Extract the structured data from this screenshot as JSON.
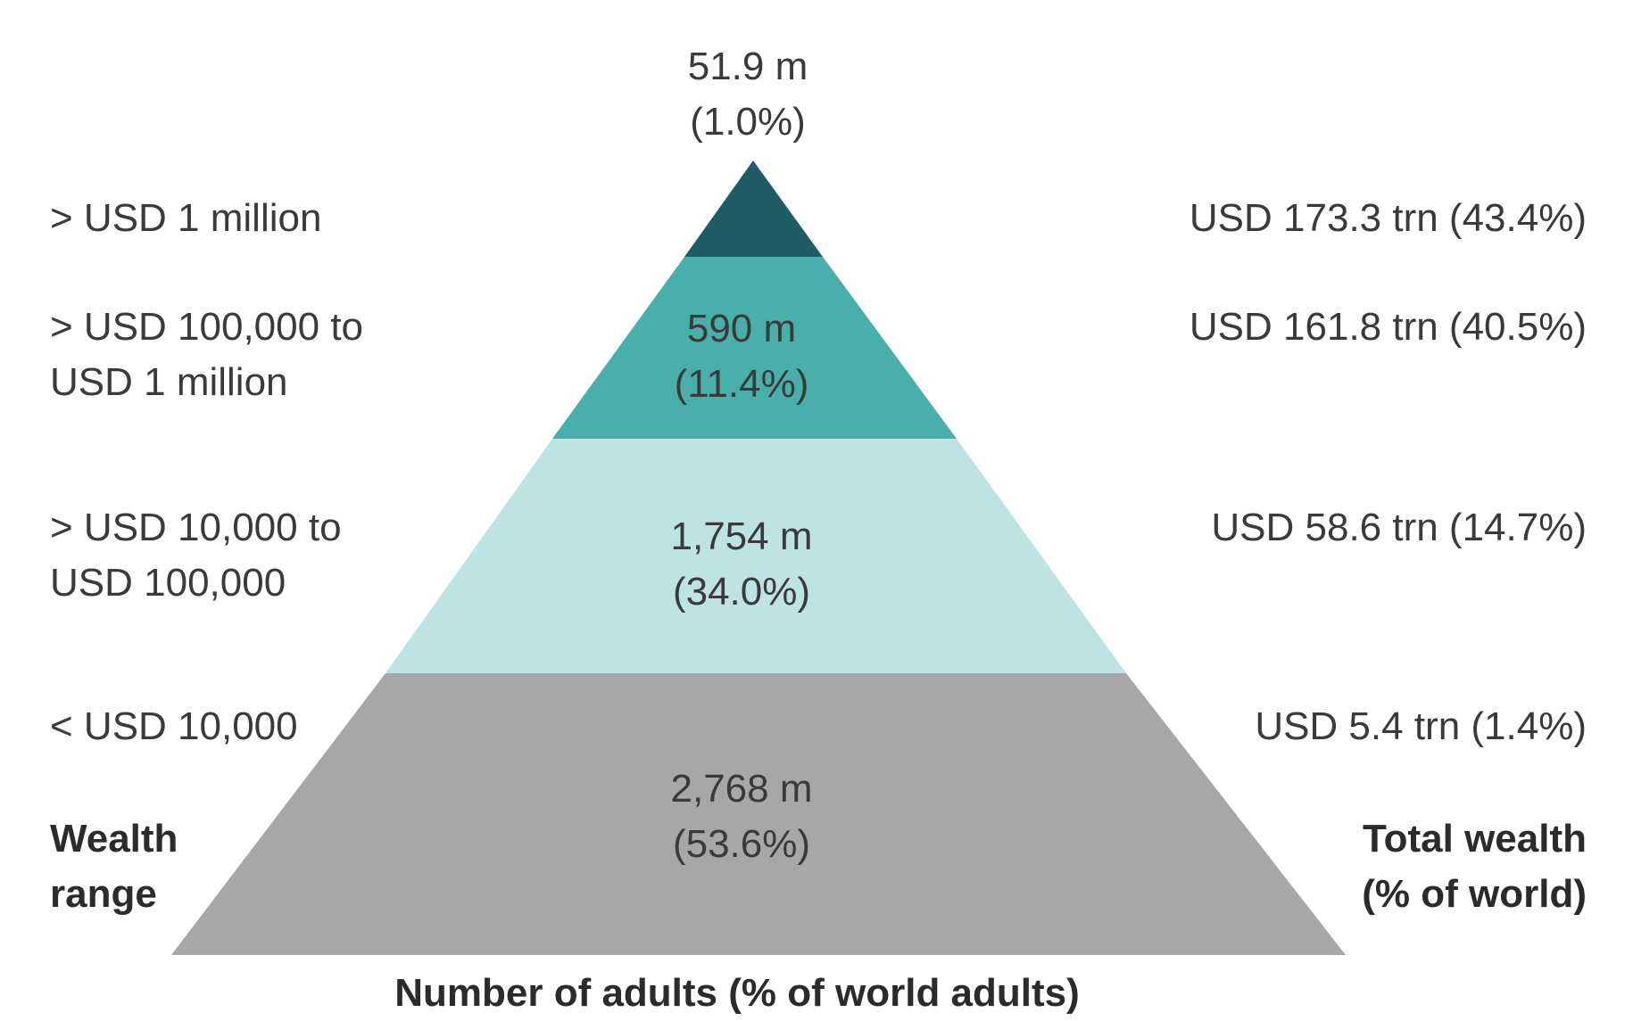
{
  "colors": {
    "tier_top": "#205c63",
    "tier_upper_middle": "#48afaa",
    "tier_middle": "#bde4e2",
    "tier_base": "#a7a7a7",
    "text": "#3a3a3a"
  },
  "pyramid": {
    "tiers": [
      {
        "id": "top",
        "wealth_range": [
          "> USD 1 million"
        ],
        "adults": "51.9 m",
        "adults_pct": "(1.0%)",
        "adults_share": 1.0,
        "total_wealth": "USD 173.3 trn (43.4%)"
      },
      {
        "id": "upper_middle",
        "wealth_range": [
          "> USD 100,000 to",
          "USD 1 million"
        ],
        "adults": "590 m",
        "adults_pct": "(11.4%)",
        "adults_share": 11.4,
        "total_wealth": "USD 161.8 trn (40.5%)"
      },
      {
        "id": "middle",
        "wealth_range": [
          "> USD 10,000 to",
          "USD 100,000"
        ],
        "adults": "1,754 m",
        "adults_pct": "(34.0%)",
        "adults_share": 34.0,
        "total_wealth": "USD 58.6 trn (14.7%)"
      },
      {
        "id": "base",
        "wealth_range": [
          "< USD 10,000"
        ],
        "adults": "2,768 m",
        "adults_pct": "(53.6%)",
        "adults_share": 53.6,
        "total_wealth": "USD 5.4 trn (1.4%)"
      }
    ]
  },
  "labels": {
    "left_heading": [
      "Wealth",
      "range"
    ],
    "right_heading": [
      "Total wealth",
      "(% of world)"
    ],
    "bottom_title": "Number of adults (% of world adults)"
  }
}
